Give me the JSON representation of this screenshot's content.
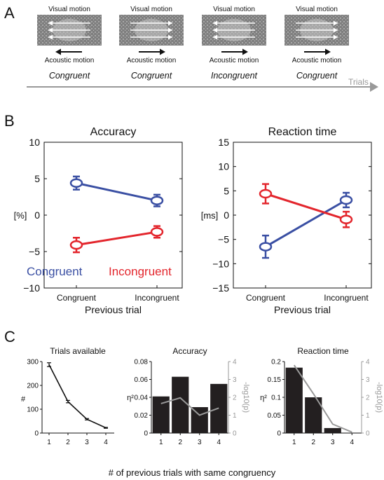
{
  "panel_labels": {
    "a": "A",
    "b": "B",
    "c": "C"
  },
  "panel_a": {
    "visual_label": "Visual motion",
    "acoustic_label": "Acoustic motion",
    "axis_label": "Trials",
    "trials": [
      {
        "visual_direction": "left",
        "acoustic_direction": "left",
        "condition": "Congruent"
      },
      {
        "visual_direction": "right",
        "acoustic_direction": "right",
        "condition": "Congruent"
      },
      {
        "visual_direction": "left",
        "acoustic_direction": "right",
        "condition": "Incongruent"
      },
      {
        "visual_direction": "right",
        "acoustic_direction": "right",
        "condition": "Congruent"
      }
    ]
  },
  "legend": {
    "congruent": "Congruent",
    "incongruent": "Incongruent"
  },
  "colors": {
    "congruent": "#3a4fa3",
    "incongruent": "#e3262d",
    "bar": "#231f20",
    "line": "#999999",
    "dots_bg": "#7f7f7f"
  },
  "chart_data": [
    {
      "type": "line",
      "title": "Accuracy",
      "xlabel": "Previous trial",
      "ylabel": "[%]",
      "categories": [
        "Congruent",
        "Incongruent"
      ],
      "ylim": [
        -10,
        10
      ],
      "yticks": [
        "−10",
        "−5",
        "0",
        "5",
        "10"
      ],
      "series": [
        {
          "name": "Congruent",
          "values": [
            4.4,
            2.0
          ],
          "errors": [
            0.9,
            0.8
          ]
        },
        {
          "name": "Incongruent",
          "values": [
            -4.1,
            -2.3
          ],
          "errors": [
            1.0,
            0.8
          ]
        }
      ]
    },
    {
      "type": "line",
      "title": "Reaction time",
      "xlabel": "Previous trial",
      "ylabel": "[ms]",
      "categories": [
        "Congruent",
        "Incongruent"
      ],
      "ylim": [
        -15,
        15
      ],
      "yticks": [
        "−15",
        "−10",
        "−5",
        "0",
        "5",
        "10",
        "15"
      ],
      "series": [
        {
          "name": "",
          "values": [
            -6.5,
            3.1
          ],
          "errors": [
            2.3,
            1.5
          ]
        },
        {
          "name": "",
          "values": [
            4.4,
            -0.9
          ],
          "errors": [
            2.0,
            1.6
          ]
        }
      ]
    },
    {
      "type": "line",
      "title": "Trials available",
      "xlabel": "",
      "ylabel": "#",
      "x": [
        "1",
        "2",
        "3",
        "4"
      ],
      "ylim": [
        0,
        300
      ],
      "yticks": [
        "0",
        "100",
        "200",
        "300"
      ],
      "values": [
        287,
        132,
        58,
        22
      ],
      "errors": [
        8,
        5,
        3,
        2
      ]
    },
    {
      "type": "bar",
      "title": "Accuracy",
      "ylabel": "η²",
      "y2label": "-log10(p)",
      "categories": [
        "1",
        "2",
        "3",
        "4"
      ],
      "ylim": [
        0,
        0.08
      ],
      "yticks": [
        "0",
        "0.02",
        "0.04",
        "0.06",
        "0.08"
      ],
      "y2lim": [
        0,
        4
      ],
      "y2ticks": [
        "0",
        "1",
        "2",
        "3",
        "4"
      ],
      "values": [
        0.041,
        0.063,
        0.029,
        0.055
      ],
      "line_values": [
        1.65,
        1.97,
        1.0,
        1.4
      ]
    },
    {
      "type": "bar",
      "title": "Reaction time",
      "ylabel": "η²",
      "y2label": "-log10(p)",
      "categories": [
        "1",
        "2",
        "3",
        "4"
      ],
      "ylim": [
        0,
        0.2
      ],
      "yticks": [
        "0",
        "0.05",
        "0.1",
        "0.15",
        "0.2"
      ],
      "y2lim": [
        0,
        4
      ],
      "y2ticks": [
        "0",
        "1",
        "2",
        "3",
        "4"
      ],
      "values": [
        0.183,
        0.1,
        0.014,
        0.001
      ],
      "line_values": [
        3.8,
        2.2,
        0.5,
        0.05
      ]
    }
  ],
  "panel_c_xlabel": "# of previous trials with same congruency"
}
